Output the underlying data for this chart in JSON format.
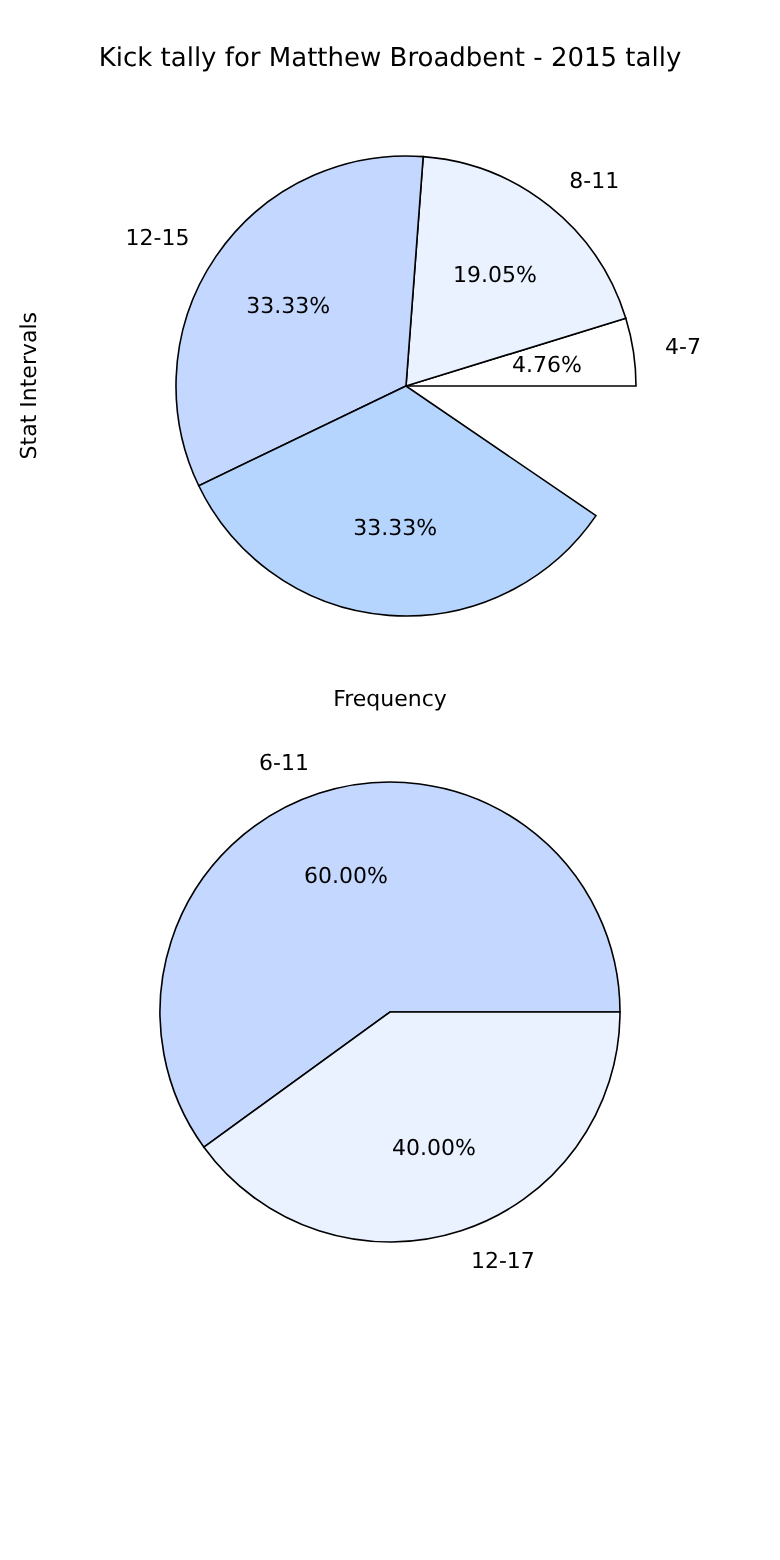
{
  "chart_data": [
    {
      "type": "pie",
      "title": "Kick tally for Matthew Broadbent - 2015 tally",
      "xlabel": "Frequency",
      "ylabel": "Stat Intervals",
      "categories": [
        "4-7",
        "8-11",
        "12-15",
        null
      ],
      "values": [
        4.76,
        19.05,
        33.33,
        33.33
      ],
      "colors": [
        "#ffffff",
        "#eaf1ff",
        "#c4d8ff",
        "#b5d5ff"
      ],
      "value_labels": [
        "4.76%",
        "19.05%",
        "33.33%",
        "33.33%"
      ]
    },
    {
      "type": "pie",
      "categories": [
        "6-11",
        "12-17"
      ],
      "values": [
        60,
        40
      ],
      "colors": [
        "#c4d8ff",
        "#eaf1ff"
      ],
      "value_labels": [
        "60.00%",
        "40.00%"
      ]
    }
  ]
}
